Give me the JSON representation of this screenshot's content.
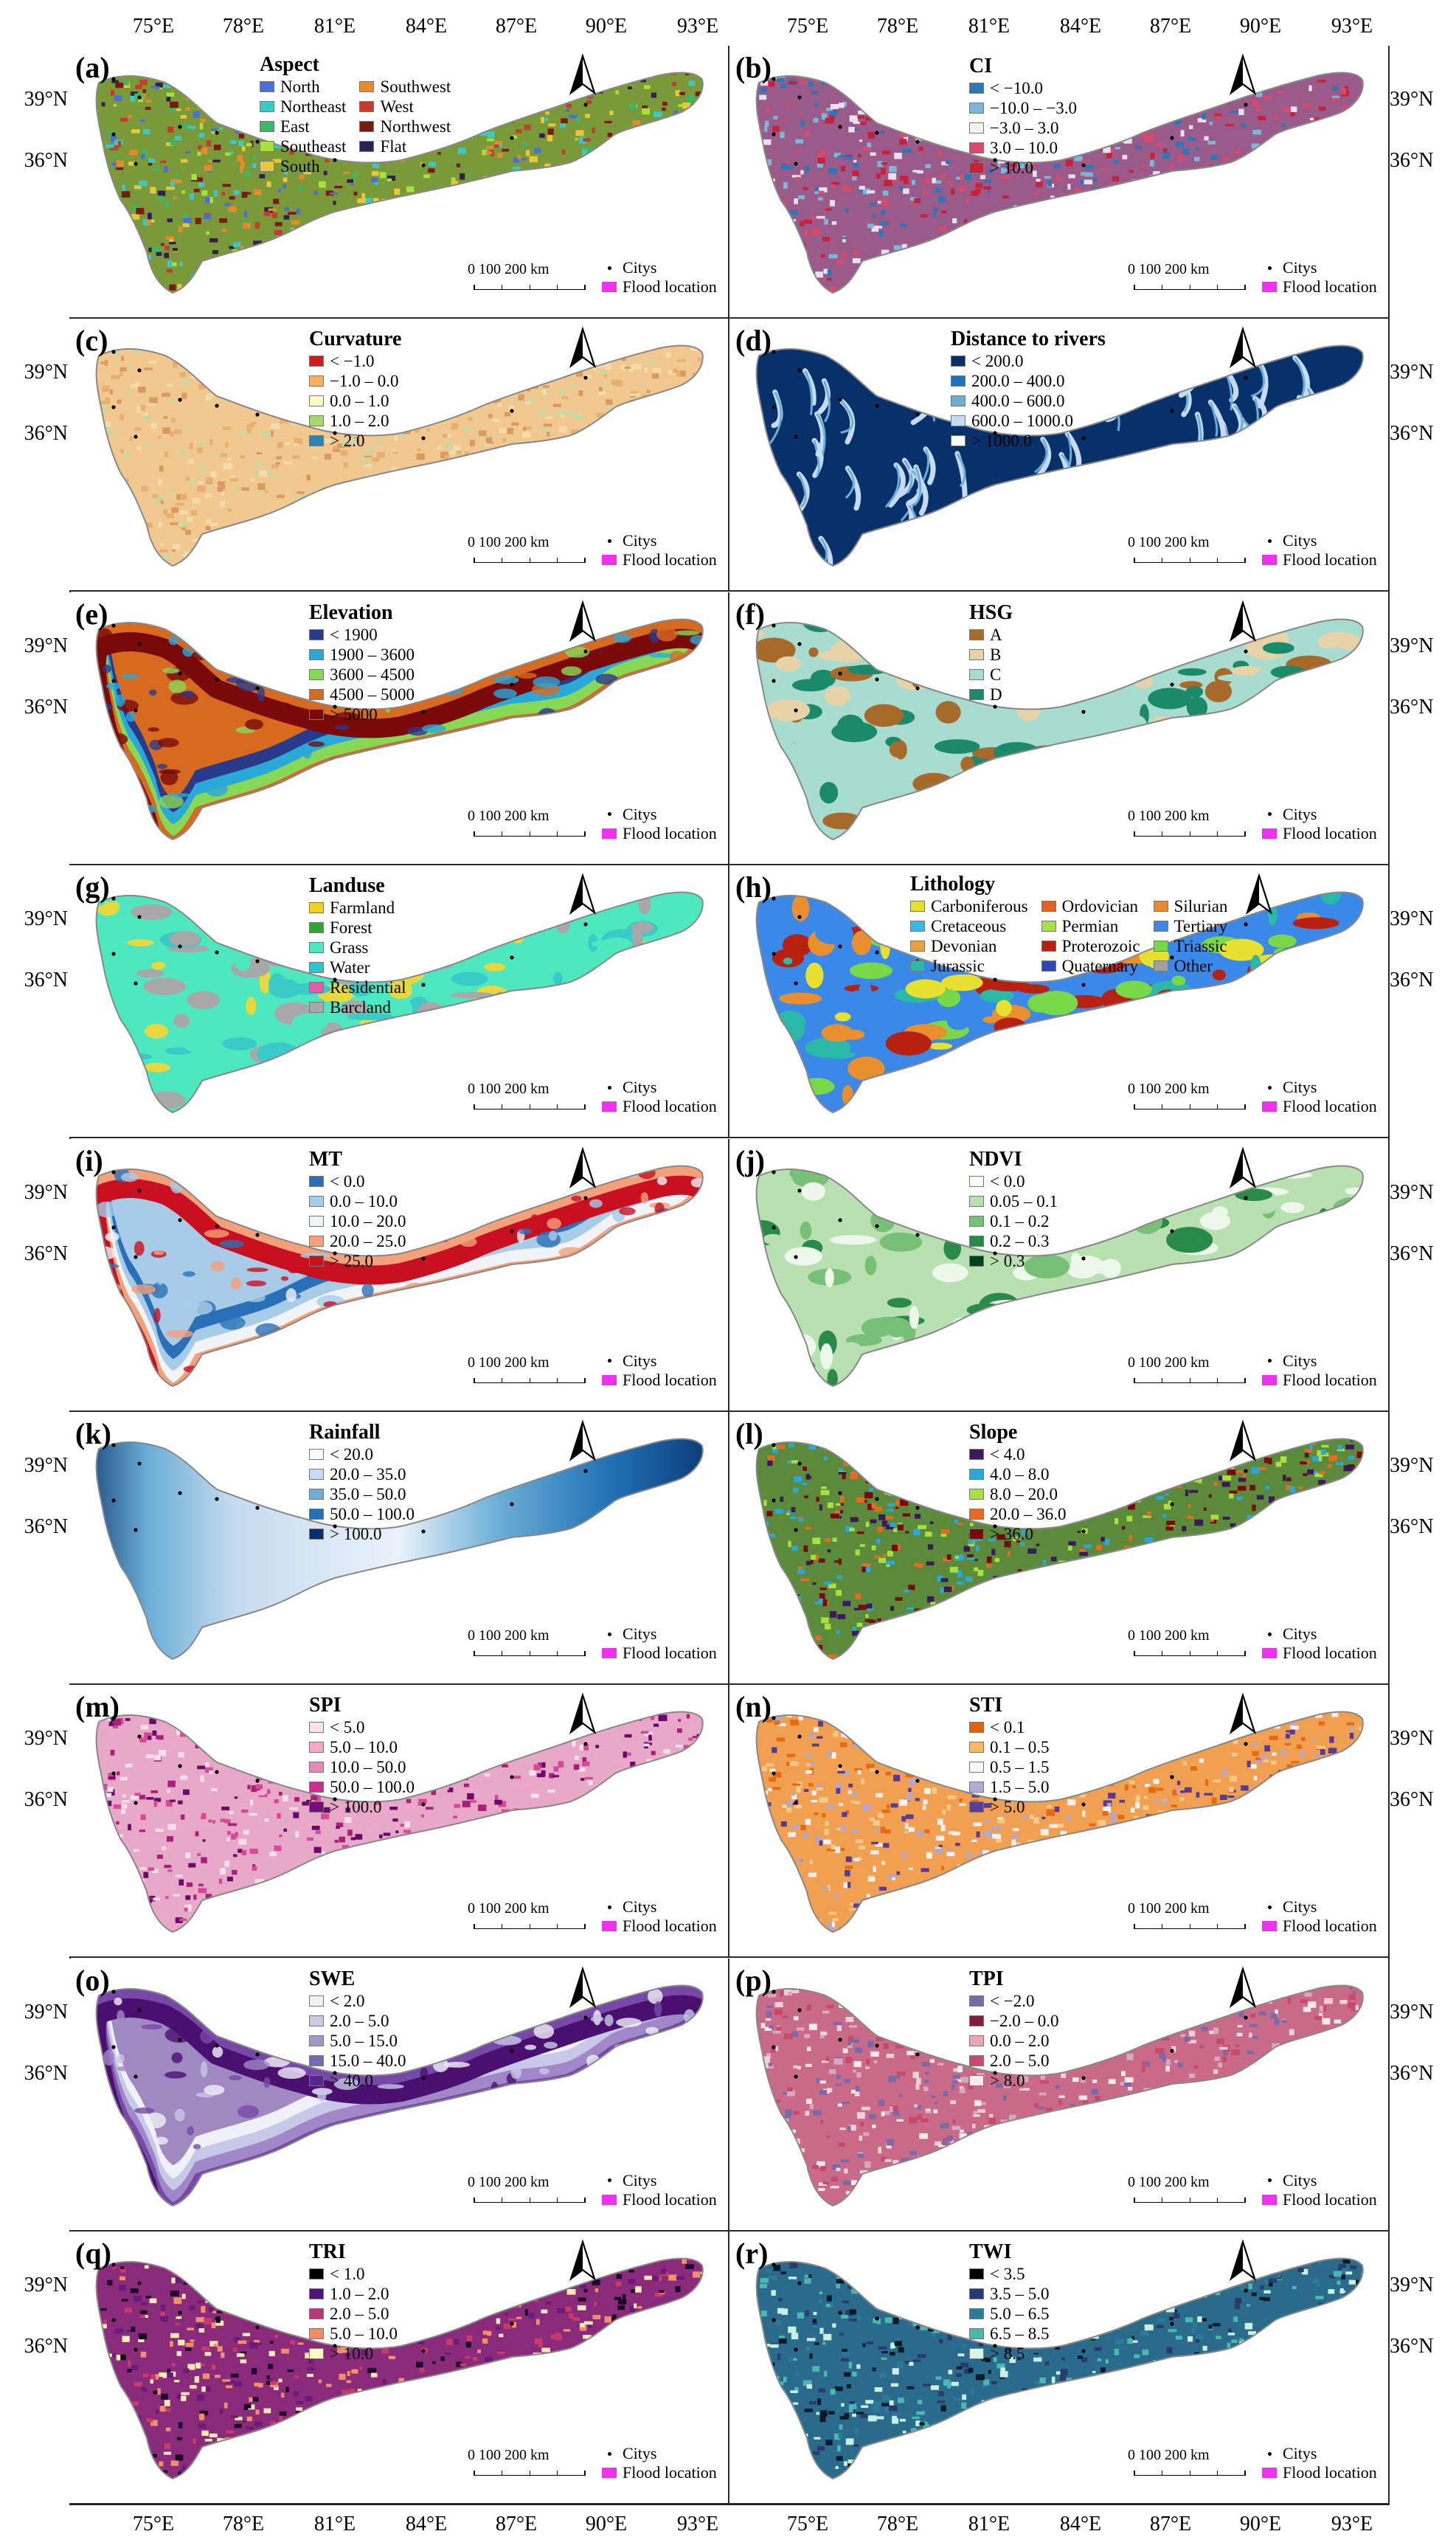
{
  "axes": {
    "lon_labels": [
      "75°E",
      "78°E",
      "81°E",
      "84°E",
      "87°E",
      "90°E",
      "93°E"
    ],
    "lat_labels": [
      "39°N",
      "36°N"
    ]
  },
  "common": {
    "scale_label": "0   100  200 km",
    "citys_label": "Citys",
    "flood_label": "Flood location"
  },
  "panels": [
    {
      "id": "(a)",
      "title": "Aspect",
      "pattern": "noise",
      "base": "#7a9a3a",
      "colors": [
        "#4a6fd8",
        "#3bc8c8",
        "#39b86a",
        "#a8e03c",
        "#e8c83a",
        "#e88a2a",
        "#c83a2a",
        "#7a1a10",
        "#302050"
      ],
      "legend": [
        {
          "label": "North",
          "color": "#4a6fd8"
        },
        {
          "label": "Northeast",
          "color": "#3bc8c8"
        },
        {
          "label": "East",
          "color": "#39b86a"
        },
        {
          "label": "Southeast",
          "color": "#a8e03c"
        },
        {
          "label": "South",
          "color": "#e8c83a"
        },
        {
          "label": "Southwest",
          "color": "#e88a2a"
        },
        {
          "label": "West",
          "color": "#c83a2a"
        },
        {
          "label": "Northwest",
          "color": "#7a1a10"
        },
        {
          "label": "Flat",
          "color": "#302050"
        }
      ]
    },
    {
      "id": "(b)",
      "title": "CI",
      "pattern": "noise",
      "base": "#9a5a8a",
      "colors": [
        "#2a78b8",
        "#7ab8d8",
        "#e8e0ec",
        "#d84a6a",
        "#c8203a"
      ],
      "legend": [
        {
          "label": "< −10.0",
          "color": "#2a78b8"
        },
        {
          "label": "−10.0 – −3.0",
          "color": "#7ab8d8"
        },
        {
          "label": "−3.0 – 3.0",
          "color": "#f4f0f4"
        },
        {
          "label": "3.0 – 10.0",
          "color": "#d84a6a"
        },
        {
          "label": "> 10.0",
          "color": "#c8203a"
        }
      ]
    },
    {
      "id": "(c)",
      "title": "Curvature",
      "pattern": "noise",
      "base": "#f0c890",
      "colors": [
        "#e8b070",
        "#f4dca8",
        "#d89a60",
        "#c8d8a0"
      ],
      "legend": [
        {
          "label": "< −1.0",
          "color": "#d7191c"
        },
        {
          "label": "−1.0 – 0.0",
          "color": "#fdae61"
        },
        {
          "label": "0.0 – 1.0",
          "color": "#ffffbf"
        },
        {
          "label": "1.0 – 2.0",
          "color": "#a6d96a"
        },
        {
          "label": "> 2.0",
          "color": "#2b83ba"
        }
      ]
    },
    {
      "id": "(d)",
      "title": "Distance to rivers",
      "pattern": "rivers",
      "base": "#c8ddf0",
      "colors": [
        "#08306b",
        "#2171b5",
        "#6baed6",
        "#c6dbef"
      ],
      "legend": [
        {
          "label": "< 200.0",
          "color": "#08306b"
        },
        {
          "label": "200.0 – 400.0",
          "color": "#2171b5"
        },
        {
          "label": "400.0 – 600.0",
          "color": "#6baed6"
        },
        {
          "label": "600.0 – 1000.0",
          "color": "#c6dbef"
        },
        {
          "label": "> 1000.0",
          "color": "#f7fbff"
        }
      ]
    },
    {
      "id": "(e)",
      "title": "Elevation",
      "pattern": "bands",
      "base": "#d86a20",
      "colors": [
        "#2a3a8a",
        "#2aa8d8",
        "#88d858",
        "#d86a20",
        "#7a0a0a"
      ],
      "legend": [
        {
          "label": "< 1900",
          "color": "#2a3a8a"
        },
        {
          "label": "1900 – 3600",
          "color": "#2aa8d8"
        },
        {
          "label": "3600 – 4500",
          "color": "#88d858"
        },
        {
          "label": "4500 – 5000",
          "color": "#d86a20"
        },
        {
          "label": "> 5000",
          "color": "#7a0a0a"
        }
      ]
    },
    {
      "id": "(f)",
      "title": "HSG",
      "pattern": "blobs",
      "base": "#a8dcd0",
      "colors": [
        "#a8dcd0",
        "#e8d2a8",
        "#1a8a6a",
        "#a86a2a"
      ],
      "legend": [
        {
          "label": "A",
          "color": "#a86a2a"
        },
        {
          "label": "B",
          "color": "#e8d2a8"
        },
        {
          "label": "C",
          "color": "#a8dcd0"
        },
        {
          "label": "D",
          "color": "#1a8a6a"
        }
      ]
    },
    {
      "id": "(g)",
      "title": "Landuse",
      "pattern": "blobs",
      "base": "#4ee8c0",
      "colors": [
        "#4ee8c0",
        "#a8a8a8",
        "#3acac8",
        "#e8d840"
      ],
      "legend": [
        {
          "label": "Farmland",
          "color": "#f0d020"
        },
        {
          "label": "Forest",
          "color": "#2aa830"
        },
        {
          "label": "Grass",
          "color": "#4ee8c0"
        },
        {
          "label": "Water",
          "color": "#28c8d0"
        },
        {
          "label": "Residential",
          "color": "#e858a8"
        },
        {
          "label": "Barcland",
          "color": "#a8a8a8"
        }
      ]
    },
    {
      "id": "(h)",
      "title": "Lithology",
      "pattern": "blobs",
      "base": "#3a88e8",
      "colors": [
        "#b82010",
        "#3a88e8",
        "#e8e030",
        "#2ab8a8",
        "#e89030",
        "#78d848"
      ],
      "legend": [
        {
          "label": "Carboniferous",
          "color": "#e8e030"
        },
        {
          "label": "Cretaceous",
          "color": "#3ab8e8"
        },
        {
          "label": "Devonian",
          "color": "#e8a040"
        },
        {
          "label": "Jurassic",
          "color": "#2ab8a8"
        },
        {
          "label": "Ordovician",
          "color": "#e86020"
        },
        {
          "label": "Permian",
          "color": "#a8e040"
        },
        {
          "label": "Proterozoic",
          "color": "#b82010"
        },
        {
          "label": "Quaternary",
          "color": "#2a48b8"
        },
        {
          "label": "Silurian",
          "color": "#e88a30"
        },
        {
          "label": "Tertiary",
          "color": "#3a88e8"
        },
        {
          "label": "Triassic",
          "color": "#78d848"
        },
        {
          "label": "Other",
          "color": "#a0a0a0"
        }
      ]
    },
    {
      "id": "(i)",
      "title": "MT",
      "pattern": "bands",
      "base": "#a8cce8",
      "colors": [
        "#2a70b8",
        "#a8cce8",
        "#f0f4f8",
        "#f4a07a",
        "#c81020"
      ],
      "legend": [
        {
          "label": "< 0.0",
          "color": "#2a70b8"
        },
        {
          "label": "0.0 – 10.0",
          "color": "#a8cce8"
        },
        {
          "label": "10.0 – 20.0",
          "color": "#f0f4f8"
        },
        {
          "label": "20.0 – 25.0",
          "color": "#f4a07a"
        },
        {
          "label": "> 25.0",
          "color": "#c81020"
        }
      ]
    },
    {
      "id": "(j)",
      "title": "NDVI",
      "pattern": "blobs",
      "base": "#b8e0b0",
      "colors": [
        "#b8e0b0",
        "#78c078",
        "#2a8a4a",
        "#eef8ea"
      ],
      "legend": [
        {
          "label": "< 0.0",
          "color": "#f7fcf5"
        },
        {
          "label": "0.05 – 0.1",
          "color": "#b8e0b0"
        },
        {
          "label": "0.1 – 0.2",
          "color": "#74c476"
        },
        {
          "label": "0.2 – 0.3",
          "color": "#238b45"
        },
        {
          "label": "> 0.3",
          "color": "#00441b"
        }
      ]
    },
    {
      "id": "(k)",
      "title": "Rainfall",
      "pattern": "westeast",
      "base": "#c6dbef",
      "colors": [
        "#eaf2fa",
        "#c6dbef",
        "#6baed6",
        "#2171b5",
        "#08306b"
      ],
      "legend": [
        {
          "label": "< 20.0",
          "color": "#f7fbff"
        },
        {
          "label": "20.0 – 35.0",
          "color": "#c6dbef"
        },
        {
          "label": "35.0 – 50.0",
          "color": "#6baed6"
        },
        {
          "label": "50.0 – 100.0",
          "color": "#2171b5"
        },
        {
          "label": "> 100.0",
          "color": "#08306b"
        }
      ]
    },
    {
      "id": "(l)",
      "title": "Slope",
      "pattern": "noise",
      "base": "#5a8a3a",
      "colors": [
        "#3a1a5a",
        "#2aa8d8",
        "#a8e040",
        "#e86a20",
        "#7a0a0a"
      ],
      "legend": [
        {
          "label": "< 4.0",
          "color": "#3a1a5a"
        },
        {
          "label": "4.0 – 8.0",
          "color": "#2aa8d8"
        },
        {
          "label": "8.0 – 20.0",
          "color": "#a8e040"
        },
        {
          "label": "20.0 – 36.0",
          "color": "#e86a20"
        },
        {
          "label": "> 36.0",
          "color": "#7a0a0a"
        }
      ]
    },
    {
      "id": "(m)",
      "title": "SPI",
      "pattern": "noise",
      "base": "#e8a8c8",
      "colors": [
        "#fbe0ea",
        "#f0a8c8",
        "#d84898",
        "#a8207a",
        "#6a0a6a"
      ],
      "legend": [
        {
          "label": "< 5.0",
          "color": "#fde0ef"
        },
        {
          "label": "5.0 – 10.0",
          "color": "#f4a8c8"
        },
        {
          "label": "10.0 – 50.0",
          "color": "#e888b8"
        },
        {
          "label": "50.0 – 100.0",
          "color": "#c8308a"
        },
        {
          "label": "> 100.0",
          "color": "#7a0a7a"
        }
      ]
    },
    {
      "id": "(n)",
      "title": "STI",
      "pattern": "noise",
      "base": "#f0a050",
      "colors": [
        "#e86a10",
        "#f8c888",
        "#f8f0f0",
        "#b0a8d0",
        "#5a3a98"
      ],
      "legend": [
        {
          "label": "< 0.1",
          "color": "#e66101"
        },
        {
          "label": "0.1 – 0.5",
          "color": "#fdb863"
        },
        {
          "label": "0.5 – 1.5",
          "color": "#f7f7f7"
        },
        {
          "label": "1.5 – 5.0",
          "color": "#b2abd2"
        },
        {
          "label": "> 5.0",
          "color": "#5e3c99"
        }
      ]
    },
    {
      "id": "(o)",
      "title": "SWE",
      "pattern": "bands",
      "base": "#a088c0",
      "colors": [
        "#f0f0f8",
        "#c8c8e8",
        "#a088c8",
        "#7848a8",
        "#4a1070"
      ],
      "legend": [
        {
          "label": "< 2.0",
          "color": "#f2f0f7"
        },
        {
          "label": "2.0 – 5.0",
          "color": "#cbc9e2"
        },
        {
          "label": "5.0 – 15.0",
          "color": "#9e9ac8"
        },
        {
          "label": "15.0 – 40.0",
          "color": "#756bb1"
        },
        {
          "label": "> 40.0",
          "color": "#54278f"
        }
      ]
    },
    {
      "id": "(p)",
      "title": "TPI",
      "pattern": "noise",
      "base": "#c86a88",
      "colors": [
        "#7a6aa8",
        "#d8a8c0",
        "#f0d0d8",
        "#c84a6a",
        "#fbe8ea"
      ],
      "legend": [
        {
          "label": "< −2.0",
          "color": "#7a6aa8"
        },
        {
          "label": "−2.0 – 0.0",
          "color": "#8a1a3a"
        },
        {
          "label": "0.0 – 2.0",
          "color": "#e8a8b0"
        },
        {
          "label": "2.0 – 5.0",
          "color": "#c84a6a"
        },
        {
          "label": "> 8.0",
          "color": "#fbeaea"
        }
      ]
    },
    {
      "id": "(q)",
      "title": "TRI",
      "pattern": "noise",
      "base": "#8a2a7a",
      "colors": [
        "#1a0a2a",
        "#6a1a78",
        "#c83a6a",
        "#f0906a",
        "#fcecb0"
      ],
      "legend": [
        {
          "label": "< 1.0",
          "color": "#000004"
        },
        {
          "label": "1.0 – 2.0",
          "color": "#51127c"
        },
        {
          "label": "2.0 – 5.0",
          "color": "#b73779"
        },
        {
          "label": "5.0 – 10.0",
          "color": "#fc8961"
        },
        {
          "label": "> 10.0",
          "color": "#fcfdbf"
        }
      ]
    },
    {
      "id": "(r)",
      "title": "TWI",
      "pattern": "noise",
      "base": "#2a6a8a",
      "colors": [
        "#0a1a2a",
        "#2a3a6a",
        "#2a7a98",
        "#4ab8b0",
        "#c8f0e0"
      ],
      "legend": [
        {
          "label": "< 3.5",
          "color": "#000000"
        },
        {
          "label": "3.5 – 5.0",
          "color": "#243a78"
        },
        {
          "label": "5.0 – 6.5",
          "color": "#2a7a9a"
        },
        {
          "label": "6.5 – 8.5",
          "color": "#48b8a8"
        },
        {
          "label": "> 8.5",
          "color": "#d8f4e8"
        }
      ]
    }
  ]
}
